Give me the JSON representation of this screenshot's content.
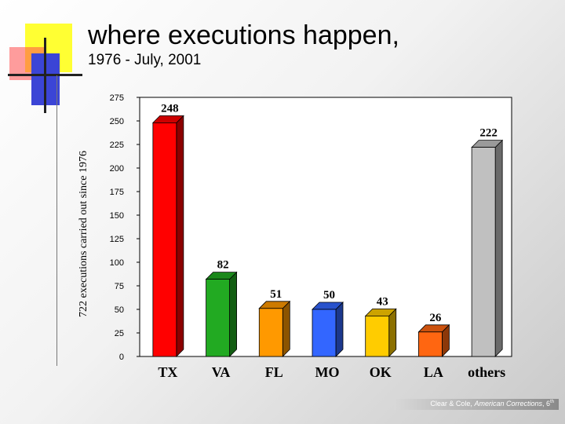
{
  "slide": {
    "title": "where executions happen,",
    "subtitle": "1976 - July, 2001",
    "footer_author": "Clear & Cole, ",
    "footer_book": "American Corrections",
    "footer_edition": ", 6",
    "footer_sup": "th"
  },
  "colors": {
    "TX": "#ff0000",
    "VA": "#22aa22",
    "FL": "#ff9900",
    "MO": "#3366ff",
    "OK": "#ffcc00",
    "LA": "#ff6611",
    "others": "#c0c0c0"
  },
  "chart_data": {
    "type": "bar",
    "ylabel": "722 executions carried out since 1976",
    "categories": [
      "TX",
      "VA",
      "FL",
      "MO",
      "OK",
      "LA",
      "others"
    ],
    "values": [
      248,
      82,
      51,
      50,
      43,
      26,
      222
    ],
    "data_labels": [
      "248",
      "82",
      "51",
      "50",
      "43",
      "26",
      "222"
    ],
    "yticks": [
      "0",
      "25",
      "50",
      "75",
      "100",
      "125",
      "150",
      "175",
      "200",
      "225",
      "250",
      "275"
    ],
    "ylim": [
      0,
      275
    ],
    "grid": false,
    "style": "3d-bar"
  }
}
